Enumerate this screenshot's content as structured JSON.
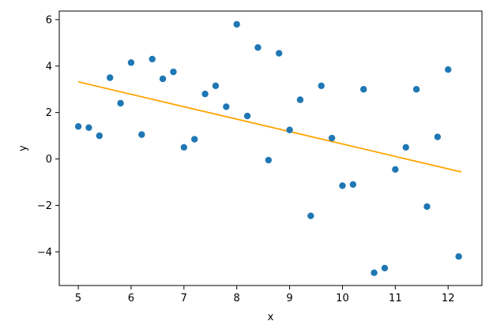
{
  "chart_data": {
    "type": "scatter",
    "title": "",
    "xlabel": "x",
    "ylabel": "y",
    "xlim": [
      4.64,
      12.64
    ],
    "ylim": [
      -5.45,
      6.37
    ],
    "xticks": [
      5,
      6,
      7,
      8,
      9,
      10,
      11,
      12
    ],
    "yticks": [
      -4,
      -2,
      0,
      2,
      4,
      6
    ],
    "grid": false,
    "legend": "none",
    "series": [
      {
        "kind": "points",
        "color": "#1f77b4",
        "points": [
          [
            5.0,
            1.4
          ],
          [
            5.2,
            1.35
          ],
          [
            5.4,
            1.0
          ],
          [
            5.6,
            3.5
          ],
          [
            5.8,
            2.4
          ],
          [
            6.0,
            4.15
          ],
          [
            6.2,
            1.05
          ],
          [
            6.4,
            4.3
          ],
          [
            6.6,
            3.45
          ],
          [
            6.8,
            3.75
          ],
          [
            7.0,
            0.5
          ],
          [
            7.2,
            0.85
          ],
          [
            7.4,
            2.8
          ],
          [
            7.6,
            3.15
          ],
          [
            7.8,
            2.25
          ],
          [
            8.0,
            5.8
          ],
          [
            8.2,
            1.85
          ],
          [
            8.4,
            4.8
          ],
          [
            8.6,
            -0.05
          ],
          [
            8.8,
            4.55
          ],
          [
            9.0,
            1.25
          ],
          [
            9.2,
            2.55
          ],
          [
            9.4,
            -2.45
          ],
          [
            9.6,
            3.15
          ],
          [
            9.8,
            0.9
          ],
          [
            10.0,
            -1.15
          ],
          [
            10.2,
            -1.1
          ],
          [
            10.4,
            3.0
          ],
          [
            10.6,
            -4.9
          ],
          [
            10.8,
            -4.7
          ],
          [
            11.0,
            -0.45
          ],
          [
            11.2,
            0.5
          ],
          [
            11.4,
            3.0
          ],
          [
            11.6,
            -2.05
          ],
          [
            11.8,
            0.95
          ],
          [
            12.0,
            3.85
          ],
          [
            12.2,
            -4.2
          ]
        ]
      },
      {
        "kind": "fit-line",
        "color": "#ffa500",
        "points": [
          [
            5.0,
            3.32
          ],
          [
            12.25,
            -0.56
          ]
        ]
      }
    ]
  }
}
